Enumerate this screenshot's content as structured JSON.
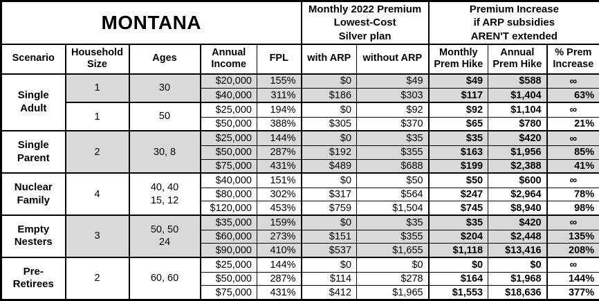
{
  "title": "MONTANA",
  "colors": {
    "shaded": "#d9d9d9",
    "line": "#000000",
    "ink": "#000000",
    "background": "#ffffff"
  },
  "chart_data": {
    "type": "table",
    "group_headers": [
      {
        "lines": [
          "Monthly 2022 Premium",
          "Lowest-Cost",
          "Silver plan"
        ]
      },
      {
        "lines": [
          "Premium Increase",
          "if ARP subsidies",
          "AREN'T extended"
        ]
      }
    ],
    "columns": [
      {
        "id": "scenario",
        "label": "Scenario"
      },
      {
        "id": "household_size",
        "lines": [
          "Household",
          "Size"
        ]
      },
      {
        "id": "ages",
        "label": "Ages"
      },
      {
        "id": "annual_income",
        "lines": [
          "Annual",
          "Income"
        ]
      },
      {
        "id": "fpl",
        "label": "FPL"
      },
      {
        "id": "with_arp",
        "label": "with ARP"
      },
      {
        "id": "without_arp",
        "label": "without ARP"
      },
      {
        "id": "monthly_prem_hike",
        "lines": [
          "Monthly",
          "Prem Hike"
        ]
      },
      {
        "id": "annual_prem_hike",
        "lines": [
          "Annual",
          "Prem Hike"
        ]
      },
      {
        "id": "pct_prem_increase",
        "lines": [
          "% Prem",
          "Increase"
        ]
      }
    ],
    "groups": [
      {
        "scenario_lines": [
          "Single",
          "Adult"
        ],
        "subgroups": [
          {
            "household": "1",
            "ages": [
              "30"
            ],
            "shaded": true,
            "rows": [
              {
                "income": "$20,000",
                "fpl": "155%",
                "with_arp": "$0",
                "without_arp": "$49",
                "monthly_hike": "$49",
                "annual_hike": "$588",
                "pct_increase": "∞"
              },
              {
                "income": "$40,000",
                "fpl": "311%",
                "with_arp": "$186",
                "without_arp": "$303",
                "monthly_hike": "$117",
                "annual_hike": "$1,404",
                "pct_increase": "63%"
              }
            ]
          },
          {
            "household": "1",
            "ages": [
              "50"
            ],
            "shaded": false,
            "rows": [
              {
                "income": "$25,000",
                "fpl": "194%",
                "with_arp": "$0",
                "without_arp": "$92",
                "monthly_hike": "$92",
                "annual_hike": "$1,104",
                "pct_increase": "∞"
              },
              {
                "income": "$50,000",
                "fpl": "388%",
                "with_arp": "$305",
                "without_arp": "$370",
                "monthly_hike": "$65",
                "annual_hike": "$780",
                "pct_increase": "21%"
              }
            ]
          }
        ]
      },
      {
        "scenario_lines": [
          "Single",
          "Parent"
        ],
        "subgroups": [
          {
            "household": "2",
            "ages": [
              "30, 8"
            ],
            "shaded": true,
            "rows": [
              {
                "income": "$25,000",
                "fpl": "144%",
                "with_arp": "$0",
                "without_arp": "$35",
                "monthly_hike": "$35",
                "annual_hike": "$420",
                "pct_increase": "∞"
              },
              {
                "income": "$50,000",
                "fpl": "287%",
                "with_arp": "$192",
                "without_arp": "$355",
                "monthly_hike": "$163",
                "annual_hike": "$1,956",
                "pct_increase": "85%"
              },
              {
                "income": "$75,000",
                "fpl": "431%",
                "with_arp": "$489",
                "without_arp": "$688",
                "monthly_hike": "$199",
                "annual_hike": "$2,388",
                "pct_increase": "41%"
              }
            ]
          }
        ]
      },
      {
        "scenario_lines": [
          "Nuclear",
          "Family"
        ],
        "subgroups": [
          {
            "household": "4",
            "ages": [
              "40, 40",
              "15, 12"
            ],
            "shaded": false,
            "rows": [
              {
                "income": "$40,000",
                "fpl": "151%",
                "with_arp": "$0",
                "without_arp": "$50",
                "monthly_hike": "$50",
                "annual_hike": "$600",
                "pct_increase": "∞"
              },
              {
                "income": "$80,000",
                "fpl": "302%",
                "with_arp": "$317",
                "without_arp": "$564",
                "monthly_hike": "$247",
                "annual_hike": "$2,964",
                "pct_increase": "78%"
              },
              {
                "income": "$120,000",
                "fpl": "453%",
                "with_arp": "$759",
                "without_arp": "$1,504",
                "monthly_hike": "$745",
                "annual_hike": "$8,940",
                "pct_increase": "98%"
              }
            ]
          }
        ]
      },
      {
        "scenario_lines": [
          "Empty",
          "Nesters"
        ],
        "subgroups": [
          {
            "household": "3",
            "ages": [
              "50, 50",
              "24"
            ],
            "shaded": true,
            "rows": [
              {
                "income": "$35,000",
                "fpl": "159%",
                "with_arp": "$0",
                "without_arp": "$35",
                "monthly_hike": "$35",
                "annual_hike": "$420",
                "pct_increase": "∞"
              },
              {
                "income": "$60,000",
                "fpl": "273%",
                "with_arp": "$151",
                "without_arp": "$355",
                "monthly_hike": "$204",
                "annual_hike": "$2,448",
                "pct_increase": "135%"
              },
              {
                "income": "$90,000",
                "fpl": "410%",
                "with_arp": "$537",
                "without_arp": "$1,655",
                "monthly_hike": "$1,118",
                "annual_hike": "$13,416",
                "pct_increase": "208%"
              }
            ]
          }
        ]
      },
      {
        "scenario_lines": [
          "Pre-",
          "Retirees"
        ],
        "subgroups": [
          {
            "household": "2",
            "ages": [
              "60, 60"
            ],
            "shaded": false,
            "rows": [
              {
                "income": "$25,000",
                "fpl": "144%",
                "with_arp": "$0",
                "without_arp": "$0",
                "monthly_hike": "$0",
                "annual_hike": "$0",
                "pct_increase": "∞"
              },
              {
                "income": "$50,000",
                "fpl": "287%",
                "with_arp": "$114",
                "without_arp": "$278",
                "monthly_hike": "$164",
                "annual_hike": "$1,968",
                "pct_increase": "144%"
              },
              {
                "income": "$75,000",
                "fpl": "431%",
                "with_arp": "$412",
                "without_arp": "$1,965",
                "monthly_hike": "$1,553",
                "annual_hike": "$18,636",
                "pct_increase": "377%"
              }
            ]
          }
        ]
      }
    ]
  }
}
